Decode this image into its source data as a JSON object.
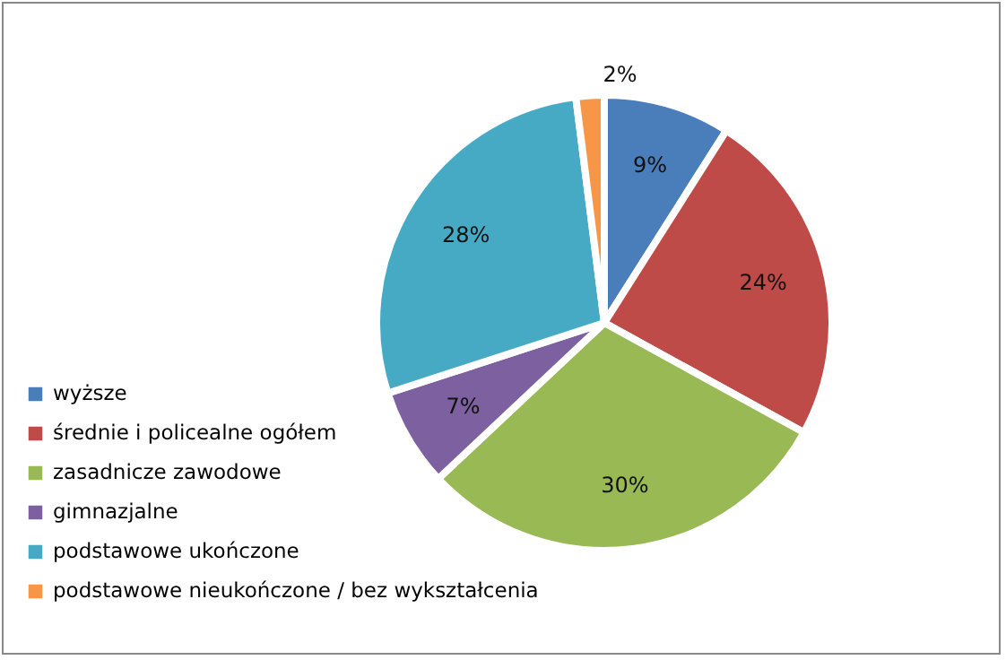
{
  "chart_data": {
    "type": "pie",
    "categories": [
      "wyższe",
      "średnie i policealne  ogółem",
      "zasadnicze  zawodowe",
      "gimnazjalne",
      "podstawowe ukończone",
      " podstawowe nieukończone  / bez wykształcenia"
    ],
    "values": [
      9,
      24,
      30,
      7,
      28,
      2
    ],
    "colors": [
      "#4a7ebb",
      "#be4b48",
      "#98b954",
      "#7d60a0",
      "#46aac5",
      "#f79646"
    ],
    "value_labels": [
      "9%",
      "24%",
      "30%",
      "7%",
      "28%",
      "2%"
    ],
    "legend": "bottom left"
  }
}
